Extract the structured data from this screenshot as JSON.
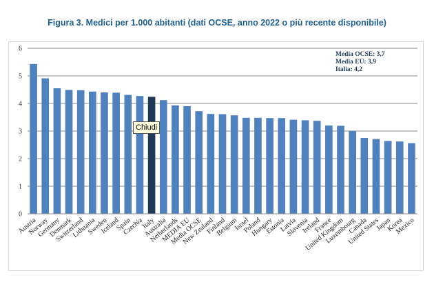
{
  "title": "Figura 3. Medici per 1.000 abitanti (dati OCSE, anno 2022 o più recente disponibile)",
  "tooltip": "Chiudi",
  "chart_data": {
    "type": "bar",
    "title": "Figura 3. Medici per 1.000 abitanti (dati OCSE, anno 2022 o più recente disponibile)",
    "xlabel": "",
    "ylabel": "",
    "ylim": [
      0,
      6
    ],
    "yticks": [
      "0",
      "1",
      "2",
      "3",
      "4",
      "5",
      "6"
    ],
    "grid": true,
    "categories": [
      "Austria",
      "Norway",
      "Germany",
      "Denmark",
      "Switzerland",
      "Lithuania",
      "Sweden",
      "Iceland",
      "Spain",
      "Czechia",
      "Italy",
      "Australia",
      "Netherlands",
      "MEDIA EU",
      "Media OCSE",
      "New Zealand",
      "Finland",
      "Belgium",
      "Israel",
      "Poland",
      "Hungary",
      "Estonia",
      "Latvia",
      "Slovenia",
      "Ireland",
      "France",
      "United Kingdom",
      "Luxembourg",
      "Canada",
      "United States",
      "Japan",
      "Korea",
      "Mexico"
    ],
    "values": [
      5.43,
      4.91,
      4.55,
      4.49,
      4.48,
      4.43,
      4.4,
      4.39,
      4.31,
      4.27,
      4.24,
      4.12,
      3.93,
      3.9,
      3.72,
      3.62,
      3.61,
      3.57,
      3.48,
      3.48,
      3.47,
      3.47,
      3.41,
      3.39,
      3.37,
      3.2,
      3.19,
      3.0,
      2.75,
      2.71,
      2.64,
      2.62,
      2.56
    ],
    "highlight": "Italy",
    "bar_color": "#4f81bd",
    "highlight_color": "#1f3b57",
    "annotations": [
      "Media OCSE: 3,7",
      "Media EU: 3,9",
      "Italia: 4,2"
    ]
  }
}
